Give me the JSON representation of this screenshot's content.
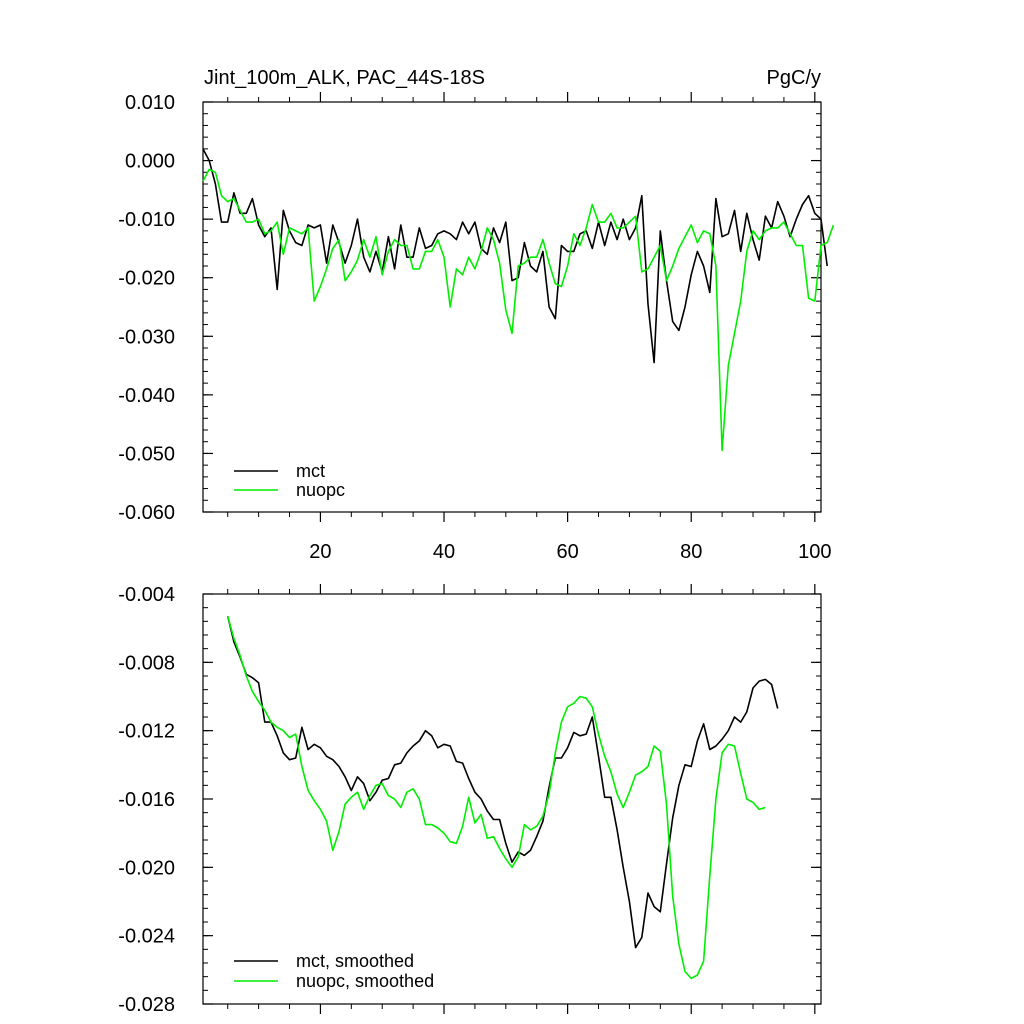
{
  "colors": {
    "mct": "#000000",
    "nuopc": "#00ee00",
    "axis": "#000000"
  },
  "chart_data": [
    {
      "type": "line",
      "title_left": "Jint_100m_ALK, PAC_44S-18S",
      "title_right": "PgC/y",
      "xlim": [
        1,
        101
      ],
      "ylim": [
        -0.06,
        0.01
      ],
      "xticks": [
        20,
        40,
        60,
        80,
        100
      ],
      "xtick_labels": [
        "20",
        "40",
        "60",
        "80",
        "100"
      ],
      "yticks": [
        0.01,
        0.0,
        -0.01,
        -0.02,
        -0.03,
        -0.04,
        -0.05,
        -0.06
      ],
      "ytick_labels": [
        "0.010",
        "0.000",
        "-0.010",
        "-0.020",
        "-0.030",
        "-0.040",
        "-0.050",
        "-0.060"
      ],
      "series": [
        {
          "name": "mct",
          "color": "#000000",
          "x_start": 1,
          "values": [
            0.002,
            0.0,
            -0.004,
            -0.0105,
            -0.0105,
            -0.0055,
            -0.009,
            -0.009,
            -0.0065,
            -0.011,
            -0.013,
            -0.0115,
            -0.022,
            -0.0085,
            -0.012,
            -0.014,
            -0.0145,
            -0.011,
            -0.0115,
            -0.011,
            -0.0175,
            -0.011,
            -0.014,
            -0.0175,
            -0.0145,
            -0.01,
            -0.0165,
            -0.019,
            -0.0155,
            -0.019,
            -0.013,
            -0.0185,
            -0.011,
            -0.0165,
            -0.0165,
            -0.0115,
            -0.015,
            -0.0145,
            -0.0125,
            -0.012,
            -0.0125,
            -0.0135,
            -0.0105,
            -0.0125,
            -0.0105,
            -0.015,
            -0.016,
            -0.0115,
            -0.014,
            -0.0105,
            -0.0205,
            -0.02,
            -0.014,
            -0.018,
            -0.019,
            -0.0155,
            -0.025,
            -0.027,
            -0.0145,
            -0.0155,
            -0.0155,
            -0.0125,
            -0.012,
            -0.015,
            -0.0105,
            -0.0145,
            -0.0105,
            -0.0135,
            -0.01,
            -0.0135,
            -0.0115,
            -0.006,
            -0.0245,
            -0.0345,
            -0.012,
            -0.0205,
            -0.0275,
            -0.029,
            -0.025,
            -0.0195,
            -0.0155,
            -0.018,
            -0.0225,
            -0.0065,
            -0.013,
            -0.0125,
            -0.0085,
            -0.0155,
            -0.009,
            -0.0135,
            -0.017,
            -0.0095,
            -0.0115,
            -0.007,
            -0.0095,
            -0.013,
            -0.01,
            -0.0075,
            -0.006,
            -0.009,
            -0.01,
            -0.018
          ]
        },
        {
          "name": "nuopc",
          "color": "#00ee00",
          "x_start": 1,
          "values": [
            -0.0035,
            -0.0015,
            -0.002,
            -0.006,
            -0.007,
            -0.0065,
            -0.0085,
            -0.0105,
            -0.0105,
            -0.01,
            -0.0125,
            -0.012,
            -0.0105,
            -0.016,
            -0.0115,
            -0.012,
            -0.0125,
            -0.0115,
            -0.024,
            -0.0215,
            -0.0185,
            -0.015,
            -0.0135,
            -0.0205,
            -0.019,
            -0.017,
            -0.0135,
            -0.0165,
            -0.013,
            -0.0195,
            -0.0155,
            -0.0135,
            -0.0145,
            -0.0145,
            -0.0185,
            -0.0185,
            -0.0155,
            -0.0155,
            -0.0135,
            -0.0165,
            -0.025,
            -0.0185,
            -0.0195,
            -0.0165,
            -0.0185,
            -0.0155,
            -0.0115,
            -0.0135,
            -0.0175,
            -0.0255,
            -0.0295,
            -0.018,
            -0.0175,
            -0.0165,
            -0.0165,
            -0.0135,
            -0.0175,
            -0.021,
            -0.0215,
            -0.018,
            -0.0125,
            -0.0145,
            -0.0115,
            -0.0075,
            -0.0105,
            -0.0105,
            -0.009,
            -0.0115,
            -0.0115,
            -0.0105,
            -0.0095,
            -0.019,
            -0.0185,
            -0.0165,
            -0.0145,
            -0.0205,
            -0.018,
            -0.015,
            -0.013,
            -0.011,
            -0.014,
            -0.012,
            -0.0125,
            -0.018,
            -0.0495,
            -0.035,
            -0.0295,
            -0.024,
            -0.0155,
            -0.012,
            -0.0135,
            -0.012,
            -0.0115,
            -0.0115,
            -0.0105,
            -0.0125,
            -0.0145,
            -0.0145,
            -0.0235,
            -0.024,
            -0.0145,
            -0.014,
            -0.011
          ]
        }
      ],
      "legend": {
        "placement": "bottom-left",
        "entries": [
          "mct",
          "nuopc"
        ]
      }
    },
    {
      "type": "line",
      "xlim": [
        1,
        101
      ],
      "ylim": [
        -0.028,
        -0.004
      ],
      "yticks": [
        -0.004,
        -0.008,
        -0.012,
        -0.016,
        -0.02,
        -0.024,
        -0.028
      ],
      "ytick_labels": [
        "-0.004",
        "-0.008",
        "-0.012",
        "-0.016",
        "-0.020",
        "-0.024",
        "-0.028"
      ],
      "series": [
        {
          "name": "mct, smoothed",
          "color": "#000000",
          "x_start": 5,
          "values": [
            -0.0053,
            -0.0068,
            -0.0077,
            -0.0087,
            -0.0089,
            -0.0092,
            -0.0115,
            -0.0115,
            -0.0123,
            -0.0133,
            -0.0137,
            -0.0136,
            -0.0118,
            -0.0131,
            -0.0128,
            -0.013,
            -0.0135,
            -0.0137,
            -0.0141,
            -0.0147,
            -0.0155,
            -0.0147,
            -0.0151,
            -0.0161,
            -0.0156,
            -0.0149,
            -0.0148,
            -0.014,
            -0.0139,
            -0.0133,
            -0.0129,
            -0.0126,
            -0.012,
            -0.0123,
            -0.013,
            -0.0128,
            -0.0129,
            -0.0138,
            -0.0139,
            -0.0148,
            -0.0156,
            -0.016,
            -0.0167,
            -0.0172,
            -0.0172,
            -0.0186,
            -0.0197,
            -0.0191,
            -0.0193,
            -0.019,
            -0.0182,
            -0.0173,
            -0.0153,
            -0.0136,
            -0.0136,
            -0.013,
            -0.0121,
            -0.0123,
            -0.0122,
            -0.0112,
            -0.0135,
            -0.0159,
            -0.0159,
            -0.0178,
            -0.02,
            -0.022,
            -0.0247,
            -0.0241,
            -0.0215,
            -0.0223,
            -0.0226,
            -0.0198,
            -0.0171,
            -0.0152,
            -0.014,
            -0.0141,
            -0.0126,
            -0.0116,
            -0.0131,
            -0.0129,
            -0.0125,
            -0.012,
            -0.0112,
            -0.0115,
            -0.0109,
            -0.0095,
            -0.0091,
            -0.009,
            -0.0093,
            -0.0107
          ]
        },
        {
          "name": "nuopc, smoothed",
          "color": "#00ee00",
          "x_start": 5,
          "values": [
            -0.0053,
            -0.0066,
            -0.0076,
            -0.0088,
            -0.0097,
            -0.0103,
            -0.0108,
            -0.0115,
            -0.0118,
            -0.012,
            -0.0124,
            -0.0122,
            -0.0141,
            -0.0155,
            -0.0161,
            -0.0166,
            -0.0173,
            -0.019,
            -0.0179,
            -0.0163,
            -0.0159,
            -0.0156,
            -0.0166,
            -0.0158,
            -0.0152,
            -0.0151,
            -0.0158,
            -0.016,
            -0.0165,
            -0.0156,
            -0.0154,
            -0.016,
            -0.0175,
            -0.0175,
            -0.0177,
            -0.018,
            -0.0185,
            -0.0186,
            -0.0176,
            -0.0159,
            -0.0174,
            -0.0169,
            -0.0183,
            -0.0182,
            -0.0189,
            -0.0195,
            -0.02,
            -0.0194,
            -0.0175,
            -0.0178,
            -0.0176,
            -0.017,
            -0.0157,
            -0.0133,
            -0.0115,
            -0.0106,
            -0.0104,
            -0.01,
            -0.0101,
            -0.0106,
            -0.0122,
            -0.0135,
            -0.0144,
            -0.0157,
            -0.0165,
            -0.0156,
            -0.0146,
            -0.0144,
            -0.0141,
            -0.0129,
            -0.0132,
            -0.0163,
            -0.0217,
            -0.0245,
            -0.0261,
            -0.0265,
            -0.0263,
            -0.0255,
            -0.0205,
            -0.016,
            -0.0133,
            -0.0128,
            -0.0129,
            -0.0145,
            -0.016,
            -0.0162,
            -0.0166,
            -0.0165
          ]
        }
      ],
      "legend": {
        "placement": "bottom-left",
        "entries": [
          "mct, smoothed",
          "nuopc, smoothed"
        ]
      }
    }
  ]
}
